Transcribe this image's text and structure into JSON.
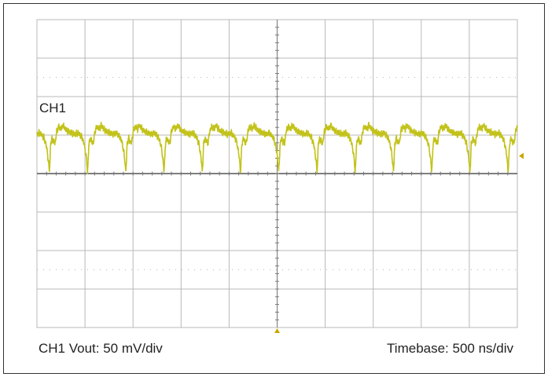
{
  "screen": {
    "channel_label": "CH1",
    "channel_scale": "CH1 Vout: 50 mV/div",
    "timebase": "Timebase: 500 ns/div"
  },
  "colors": {
    "grid": "#b8b8b8",
    "trace": "#c2c21a",
    "marker": "#c9a800",
    "frame": "#333333"
  },
  "chart_data": {
    "type": "line",
    "title": "",
    "xlabel": "Timebase: 500 ns/div",
    "ylabel": "CH1 Vout: 50 mV/div",
    "grid": true,
    "x_divisions": 10,
    "y_divisions": 8,
    "xlim": [
      0,
      5000
    ],
    "ylim": [
      -200,
      200
    ],
    "x_unit": "ns",
    "y_unit": "mV",
    "series": [
      {
        "name": "CH1",
        "period_ns": 398,
        "phase_ns": 190,
        "x_unit": "ns",
        "y_unit": "mV",
        "shape": [
          {
            "t": 0.0,
            "v": 40
          },
          {
            "t": 0.04,
            "v": 55
          },
          {
            "t": 0.09,
            "v": 61
          },
          {
            "t": 0.16,
            "v": 58
          },
          {
            "t": 0.2,
            "v": 63
          },
          {
            "t": 0.3,
            "v": 56
          },
          {
            "t": 0.42,
            "v": 53
          },
          {
            "t": 0.52,
            "v": 51
          },
          {
            "t": 0.6,
            "v": 53
          },
          {
            "t": 0.7,
            "v": 47
          },
          {
            "t": 0.76,
            "v": 38
          },
          {
            "t": 0.8,
            "v": 26
          },
          {
            "t": 0.83,
            "v": 12
          },
          {
            "t": 0.845,
            "v": 2
          },
          {
            "t": 0.86,
            "v": 14
          },
          {
            "t": 0.88,
            "v": 38
          },
          {
            "t": 0.92,
            "v": 46
          },
          {
            "t": 0.96,
            "v": 41
          },
          {
            "t": 1.0,
            "v": 40
          }
        ]
      }
    ]
  }
}
